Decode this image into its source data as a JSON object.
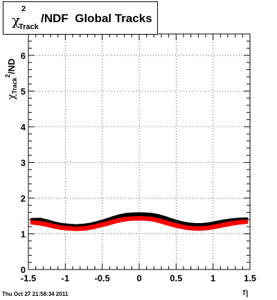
{
  "title": {
    "symbol": "χ",
    "superscript": "2",
    "subscript": "Track",
    "rest": "/NDF  Global Tracks"
  },
  "y_label": {
    "symbol": "χ",
    "superscript": "2",
    "subscript": "Track",
    "rest": "/ND"
  },
  "timestamp": "Thu Oct 27 21:58:34 2011",
  "chart_data": {
    "type": "scatter",
    "xlabel": "η",
    "xlim": [
      -1.5,
      1.5
    ],
    "ylim": [
      0,
      6.6
    ],
    "xticks": [
      "-1.5",
      "-1",
      "-0.5",
      "0",
      "0.5",
      "1",
      "1.5"
    ],
    "yticks": [
      "0",
      "1",
      "2",
      "3",
      "4",
      "5",
      "6"
    ],
    "grid": true,
    "series": [
      {
        "color": "#000000",
        "x": [
          -1.45,
          -1.35,
          -1.25,
          -1.15,
          -1.05,
          -0.95,
          -0.85,
          -0.75,
          -0.65,
          -0.55,
          -0.45,
          -0.35,
          -0.25,
          -0.15,
          -0.05,
          0.05,
          0.15,
          0.25,
          0.35,
          0.45,
          0.55,
          0.65,
          0.75,
          0.85,
          0.95,
          1.05,
          1.15,
          1.25,
          1.35,
          1.45
        ],
        "y": [
          1.38,
          1.39,
          1.34,
          1.28,
          1.24,
          1.22,
          1.21,
          1.22,
          1.25,
          1.3,
          1.36,
          1.43,
          1.49,
          1.53,
          1.54,
          1.54,
          1.53,
          1.49,
          1.43,
          1.36,
          1.3,
          1.26,
          1.24,
          1.24,
          1.26,
          1.3,
          1.34,
          1.37,
          1.39,
          1.4
        ]
      },
      {
        "color": "#ff0000",
        "x": [
          -1.45,
          -1.35,
          -1.25,
          -1.15,
          -1.05,
          -0.95,
          -0.85,
          -0.75,
          -0.65,
          -0.55,
          -0.45,
          -0.35,
          -0.25,
          -0.15,
          -0.05,
          0.05,
          0.15,
          0.25,
          0.35,
          0.45,
          0.55,
          0.65,
          0.75,
          0.85,
          0.95,
          1.05,
          1.15,
          1.25,
          1.35,
          1.45
        ],
        "y": [
          1.32,
          1.3,
          1.26,
          1.21,
          1.17,
          1.15,
          1.14,
          1.15,
          1.18,
          1.23,
          1.28,
          1.34,
          1.39,
          1.42,
          1.43,
          1.43,
          1.42,
          1.38,
          1.32,
          1.26,
          1.21,
          1.17,
          1.15,
          1.15,
          1.17,
          1.21,
          1.25,
          1.29,
          1.32,
          1.34
        ]
      }
    ]
  }
}
